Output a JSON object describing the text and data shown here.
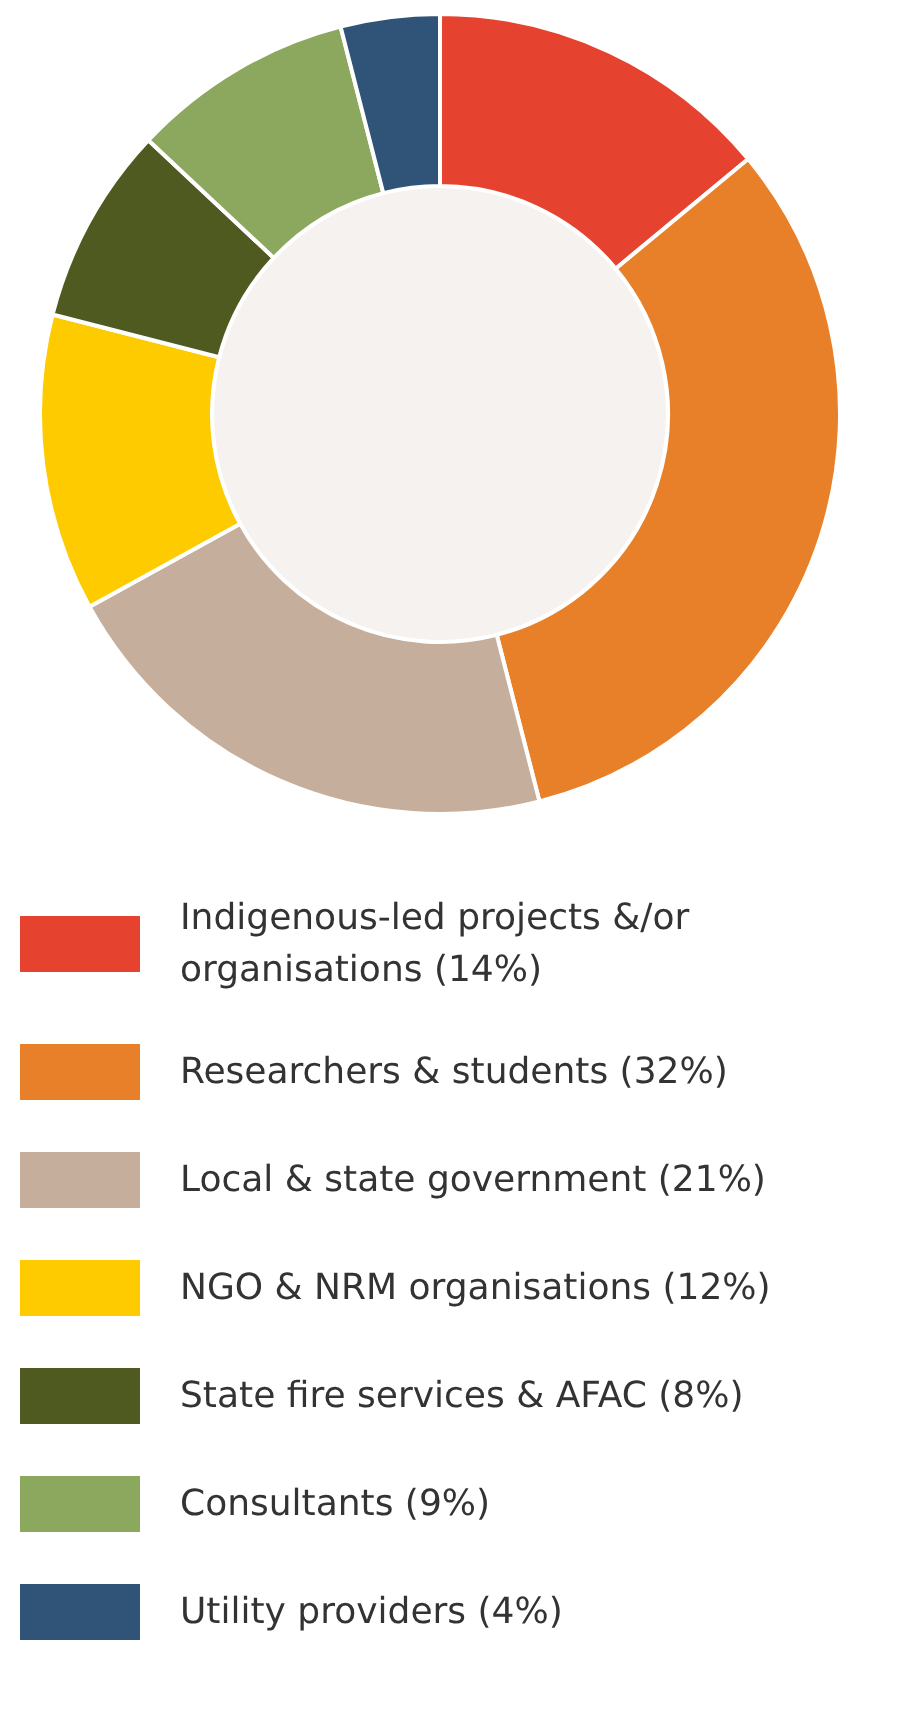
{
  "chart_data": {
    "type": "donut",
    "categories": [
      "Indigenous-led projects &/or organisations (14%)",
      "Researchers & students (32%)",
      "Local & state government (21%)",
      "NGO & NRM organisations (12%)",
      "State fire services & AFAC (8%)",
      "Consultants (9%)",
      "Utility providers (4%)"
    ],
    "values": [
      14,
      32,
      21,
      12,
      8,
      9,
      4
    ],
    "colors": [
      "#e5432f",
      "#e8802a",
      "#c5ae9c",
      "#fecb00",
      "#4f5a20",
      "#8ca75e",
      "#2f5478"
    ],
    "legend": "bottom"
  }
}
